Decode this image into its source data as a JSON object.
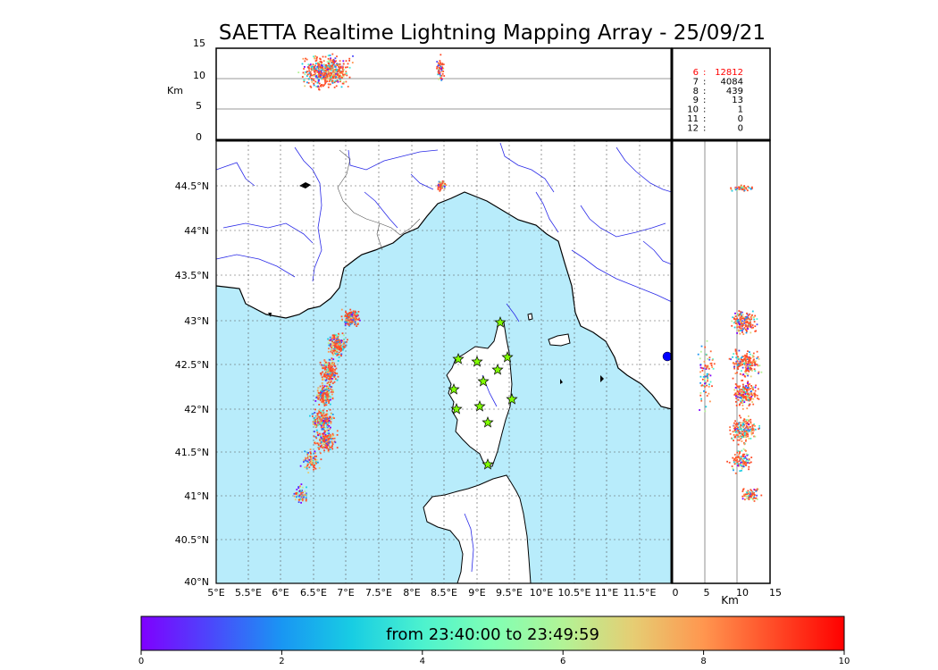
{
  "title": "SAETTA Realtime Lightning Mapping Array - 25/09/21",
  "altitude_panel": {
    "unit": "Km",
    "y_ticks": [
      "15",
      "10",
      "5",
      "0"
    ]
  },
  "side_panel": {
    "unit": "Km",
    "x_ticks": [
      "0",
      "5",
      "10",
      "15"
    ]
  },
  "station_counts": {
    "rows": [
      {
        "n": "6",
        "count": "12812",
        "highlight": true
      },
      {
        "n": "7",
        "count": "4084",
        "highlight": false
      },
      {
        "n": "8",
        "count": "439",
        "highlight": false
      },
      {
        "n": "9",
        "count": "13",
        "highlight": false
      },
      {
        "n": "10",
        "count": "1",
        "highlight": false
      },
      {
        "n": "11",
        "count": "0",
        "highlight": false
      },
      {
        "n": "12",
        "count": "0",
        "highlight": false
      }
    ],
    "highlight_color": "#ff0000"
  },
  "map": {
    "lat_labels": [
      "44.5°N",
      "44°N",
      "43.5°N",
      "43°N",
      "42.5°N",
      "42°N",
      "41.5°N",
      "41°N",
      "40.5°N",
      "40°N"
    ],
    "lon_labels": [
      "5°E",
      "5.5°E",
      "6°E",
      "6.5°E",
      "7°E",
      "7.5°E",
      "8°E",
      "8.5°E",
      "9°E",
      "9.5°E",
      "10°E",
      "10.5°E",
      "11°E",
      "11.5°E"
    ],
    "sea_color": "#b8ecfb",
    "river_color": "#2a2ae8",
    "station_color": "#80ff00"
  },
  "colorbar": {
    "label": "from 23:40:00 to 23:49:59",
    "ticks": [
      "0",
      "2",
      "4",
      "6",
      "8",
      "10"
    ]
  }
}
